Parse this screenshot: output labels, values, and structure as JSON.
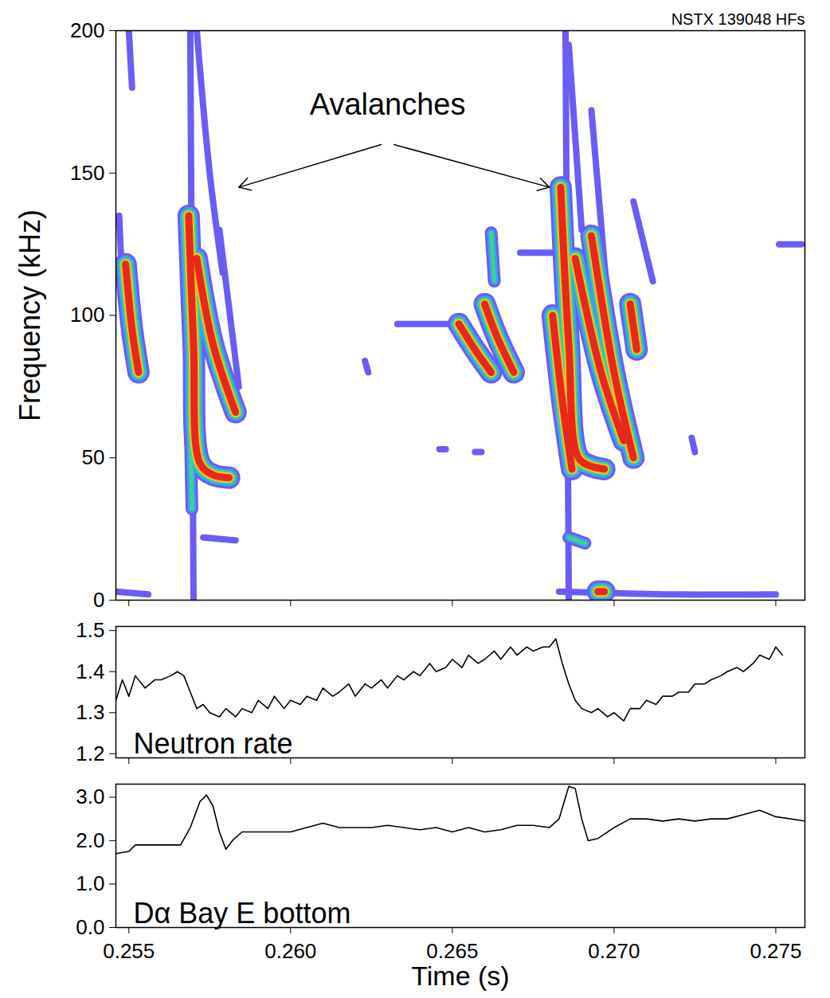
{
  "chart_data": [
    {
      "type": "spectrogram",
      "title": "NSTX 139048 HFs",
      "y_label": "Frequency (kHz)",
      "xlim": [
        0.2546,
        0.2759
      ],
      "xticks": [
        0.255,
        {
          "value": 0.26,
          "label": "0.260"
        },
        0.265,
        {
          "value": 0.27,
          "label": "0.270"
        },
        0.275
      ],
      "ylim": [
        0,
        200
      ],
      "yticks": [
        0,
        50,
        100,
        150,
        200
      ],
      "tick_labels": "y",
      "colors": [
        "#6a5cf5",
        "#3aa0f0",
        "#3cd48c",
        "#f2c21e",
        "#e8281a"
      ],
      "annotations": [
        {
          "text": "Avalanches",
          "x": 0.263,
          "y": 174,
          "arrows": [
            {
              "x1": 0.2628,
              "y1": 160,
              "x2": 0.2584,
              "y2": 145
            },
            {
              "x1": 0.2632,
              "y1": 160,
              "x2": 0.268,
              "y2": 145
            }
          ]
        }
      ],
      "tracks": [
        {
          "x": [
            0.2569,
            0.25695,
            0.257
          ],
          "y": [
            200,
            100,
            0
          ],
          "level": 1
        },
        {
          "x": [
            0.25685,
            0.257,
            0.2572,
            0.2576,
            0.2581
          ],
          "y": [
            135,
            90,
            48,
            44,
            43
          ],
          "level": 3
        },
        {
          "x": [
            0.2571,
            0.2576,
            0.2583
          ],
          "y": [
            120,
            90,
            66
          ],
          "level": 3
        },
        {
          "x": [
            0.2569,
            0.25695
          ],
          "y": [
            60,
            32
          ],
          "level": 2
        },
        {
          "x": [
            0.2573,
            0.2583
          ],
          "y": [
            22,
            21
          ],
          "level": 1
        },
        {
          "x": [
            0.2571,
            0.2575,
            0.2579
          ],
          "y": [
            200,
            150,
            115
          ],
          "level": 1
        },
        {
          "x": [
            0.2578,
            0.2584
          ],
          "y": [
            130,
            75
          ],
          "level": 1
        },
        {
          "x": [
            0.2549,
            0.2551,
            0.2553
          ],
          "y": [
            118,
            95,
            80
          ],
          "level": 3
        },
        {
          "x": [
            0.2547,
            0.2548
          ],
          "y": [
            135,
            110
          ],
          "level": 1
        },
        {
          "x": [
            0.255,
            0.2551
          ],
          "y": [
            200,
            180
          ],
          "level": 1
        },
        {
          "x": [
            0.2546,
            0.2556
          ],
          "y": [
            3,
            2
          ],
          "level": 1
        },
        {
          "x": [
            0.2623,
            0.2624
          ],
          "y": [
            84,
            80
          ],
          "level": 1
        },
        {
          "x": [
            0.2633,
            0.2653
          ],
          "y": [
            97,
            97
          ],
          "level": 1
        },
        {
          "x": [
            0.2652,
            0.2657,
            0.2662
          ],
          "y": [
            97,
            88,
            80
          ],
          "level": 3
        },
        {
          "x": [
            0.266,
            0.2664,
            0.2669
          ],
          "y": [
            104,
            92,
            80
          ],
          "level": 3
        },
        {
          "x": [
            0.2662,
            0.2663
          ],
          "y": [
            129,
            112
          ],
          "level": 2
        },
        {
          "x": [
            0.2671,
            0.2682
          ],
          "y": [
            122,
            122
          ],
          "level": 1
        },
        {
          "x": [
            0.2646,
            0.2648
          ],
          "y": [
            53,
            53
          ],
          "level": 1
        },
        {
          "x": [
            0.2657,
            0.2659
          ],
          "y": [
            52,
            52
          ],
          "level": 1
        },
        {
          "x": [
            0.2685,
            0.26855,
            0.2686
          ],
          "y": [
            200,
            100,
            0
          ],
          "level": 1
        },
        {
          "x": [
            0.26835,
            0.2686,
            0.2689,
            0.2693,
            0.2697
          ],
          "y": [
            145,
            90,
            50,
            47,
            46
          ],
          "level": 3
        },
        {
          "x": [
            0.2681,
            0.2684,
            0.2687
          ],
          "y": [
            100,
            70,
            46
          ],
          "level": 3
        },
        {
          "x": [
            0.2688,
            0.2696,
            0.2703
          ],
          "y": [
            120,
            80,
            56
          ],
          "level": 3
        },
        {
          "x": [
            0.2693,
            0.27,
            0.2706
          ],
          "y": [
            128,
            80,
            50
          ],
          "level": 3
        },
        {
          "x": [
            0.2686,
            0.269
          ],
          "y": [
            195,
            130
          ],
          "level": 1
        },
        {
          "x": [
            0.2693,
            0.2699
          ],
          "y": [
            172,
            92
          ],
          "level": 1
        },
        {
          "x": [
            0.2705,
            0.2707
          ],
          "y": [
            104,
            88
          ],
          "level": 3
        },
        {
          "x": [
            0.2706,
            0.2712
          ],
          "y": [
            140,
            112
          ],
          "level": 1
        },
        {
          "x": [
            0.2683,
            0.272,
            0.275
          ],
          "y": [
            3,
            2,
            2
          ],
          "level": 1
        },
        {
          "x": [
            0.2695,
            0.2697
          ],
          "y": [
            3,
            3
          ],
          "level": 3
        },
        {
          "x": [
            0.2686,
            0.2691
          ],
          "y": [
            22,
            20
          ],
          "level": 2
        },
        {
          "x": [
            0.2724,
            0.2725
          ],
          "y": [
            57,
            52
          ],
          "level": 1
        },
        {
          "x": [
            0.2751,
            0.2758
          ],
          "y": [
            125,
            125
          ],
          "level": 1
        }
      ]
    },
    {
      "type": "line",
      "xlim": [
        0.2546,
        0.2759
      ],
      "xticks": [
        0.255,
        {
          "value": 0.26,
          "label": "0.260"
        },
        0.265,
        {
          "value": 0.27,
          "label": "0.270"
        },
        0.275
      ],
      "ylim": [
        1.19,
        1.51
      ],
      "yticks": [
        1.2,
        1.3,
        1.4,
        1.5
      ],
      "tick_labels": "y",
      "x": [
        0.2546,
        0.2548,
        0.255,
        0.2552,
        0.2555,
        0.2558,
        0.256,
        0.2563,
        0.2565,
        0.2567,
        0.2569,
        0.2571,
        0.2573,
        0.2575,
        0.2578,
        0.258,
        0.2583,
        0.2585,
        0.2588,
        0.259,
        0.2593,
        0.2595,
        0.2598,
        0.26,
        0.2603,
        0.2605,
        0.2608,
        0.261,
        0.2613,
        0.2615,
        0.2618,
        0.262,
        0.2623,
        0.2625,
        0.2628,
        0.263,
        0.2633,
        0.2635,
        0.2638,
        0.264,
        0.2643,
        0.2645,
        0.2648,
        0.265,
        0.2653,
        0.2655,
        0.2658,
        0.266,
        0.2663,
        0.2665,
        0.2668,
        0.267,
        0.2673,
        0.2675,
        0.2678,
        0.268,
        0.2682,
        0.2684,
        0.2686,
        0.2688,
        0.269,
        0.2693,
        0.2695,
        0.2698,
        0.27,
        0.2703,
        0.2705,
        0.2708,
        0.271,
        0.2713,
        0.2715,
        0.2718,
        0.272,
        0.2723,
        0.2725,
        0.2728,
        0.273,
        0.2733,
        0.2735,
        0.2738,
        0.274,
        0.2743,
        0.2745,
        0.2748,
        0.275,
        0.2752
      ],
      "series": [
        {
          "name": "Neutron rate",
          "color": "#000000",
          "values": [
            1.33,
            1.38,
            1.34,
            1.39,
            1.36,
            1.38,
            1.38,
            1.39,
            1.4,
            1.39,
            1.35,
            1.31,
            1.32,
            1.3,
            1.29,
            1.31,
            1.29,
            1.31,
            1.3,
            1.33,
            1.31,
            1.34,
            1.31,
            1.33,
            1.32,
            1.34,
            1.33,
            1.36,
            1.34,
            1.35,
            1.37,
            1.34,
            1.37,
            1.36,
            1.38,
            1.36,
            1.39,
            1.38,
            1.4,
            1.39,
            1.42,
            1.4,
            1.41,
            1.43,
            1.41,
            1.44,
            1.42,
            1.43,
            1.45,
            1.43,
            1.46,
            1.44,
            1.46,
            1.45,
            1.46,
            1.46,
            1.48,
            1.42,
            1.37,
            1.33,
            1.31,
            1.3,
            1.31,
            1.29,
            1.3,
            1.28,
            1.31,
            1.31,
            1.33,
            1.32,
            1.34,
            1.34,
            1.35,
            1.35,
            1.37,
            1.37,
            1.38,
            1.39,
            1.4,
            1.41,
            1.4,
            1.42,
            1.44,
            1.43,
            1.46,
            1.44
          ]
        }
      ]
    },
    {
      "type": "line",
      "x_label": "Time (s)",
      "xlim": [
        0.2546,
        0.2759
      ],
      "xticks": [
        0.255,
        {
          "value": 0.26,
          "label": "0.260"
        },
        0.265,
        {
          "value": 0.27,
          "label": "0.270"
        },
        0.275
      ],
      "ylim": [
        0,
        3.3
      ],
      "yticks": [
        {
          "value": 0,
          "label": "0.0"
        },
        {
          "value": 1,
          "label": "1.0"
        },
        {
          "value": 2,
          "label": "2.0"
        },
        {
          "value": 3,
          "label": "3.0"
        }
      ],
      "tick_labels": true,
      "x": [
        0.2546,
        0.255,
        0.2552,
        0.256,
        0.2566,
        0.2569,
        0.2572,
        0.2574,
        0.2576,
        0.2578,
        0.258,
        0.2582,
        0.2585,
        0.259,
        0.2595,
        0.26,
        0.2605,
        0.261,
        0.2615,
        0.262,
        0.2625,
        0.263,
        0.2635,
        0.264,
        0.2645,
        0.265,
        0.2655,
        0.266,
        0.2665,
        0.267,
        0.2675,
        0.268,
        0.2683,
        0.2686,
        0.2688,
        0.269,
        0.2692,
        0.2695,
        0.27,
        0.2705,
        0.271,
        0.2715,
        0.272,
        0.2725,
        0.273,
        0.2735,
        0.274,
        0.2745,
        0.275,
        0.2759
      ],
      "series": [
        {
          "name": "Dα Bay E bottom",
          "color": "#000000",
          "values": [
            1.7,
            1.75,
            1.9,
            1.9,
            1.9,
            2.3,
            2.9,
            3.05,
            2.8,
            2.2,
            1.8,
            2.0,
            2.2,
            2.2,
            2.2,
            2.2,
            2.3,
            2.4,
            2.3,
            2.3,
            2.3,
            2.35,
            2.3,
            2.25,
            2.3,
            2.2,
            2.3,
            2.2,
            2.25,
            2.35,
            2.35,
            2.3,
            2.5,
            3.25,
            3.2,
            2.5,
            2.0,
            2.05,
            2.3,
            2.5,
            2.5,
            2.45,
            2.5,
            2.45,
            2.5,
            2.5,
            2.6,
            2.7,
            2.55,
            2.45
          ]
        }
      ]
    }
  ]
}
